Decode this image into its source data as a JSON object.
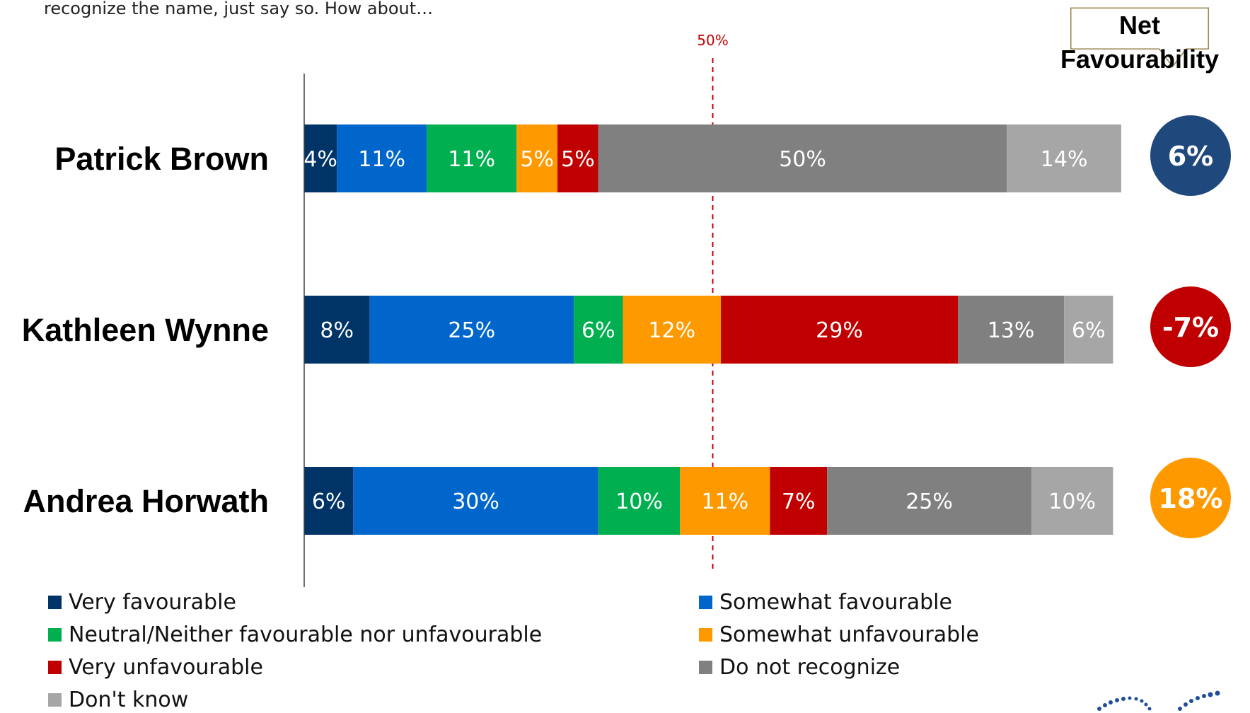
{
  "subtitle": "recognize the name, just say so. How about…",
  "callout": {
    "line1": "Net",
    "line2": "Favourability"
  },
  "reference_line_label": "50%",
  "chart_data": {
    "type": "bar",
    "orientation": "horizontal",
    "stacked": true,
    "categories": [
      "Patrick Brown",
      "Kathleen Wynne",
      "Andrea Horwath"
    ],
    "series": [
      {
        "name": "Very favourable",
        "color": "#003366",
        "values": [
          4,
          8,
          6
        ]
      },
      {
        "name": "Somewhat favourable",
        "color": "#0066CC",
        "values": [
          11,
          25,
          30
        ]
      },
      {
        "name": "Neutral/Neither favourable nor unfavourable",
        "color": "#00B050",
        "values": [
          11,
          6,
          10
        ]
      },
      {
        "name": "Somewhat unfavourable",
        "color": "#FF9900",
        "values": [
          5,
          12,
          11
        ]
      },
      {
        "name": "Very unfavourable",
        "color": "#C00000",
        "values": [
          5,
          29,
          7
        ]
      },
      {
        "name": "Do not recognize",
        "color": "#808080",
        "values": [
          50,
          13,
          25
        ]
      },
      {
        "name": "Don't know",
        "color": "#A6A6A6",
        "values": [
          14,
          6,
          10
        ]
      }
    ],
    "xlim": [
      0,
      100
    ],
    "reference_line": 50,
    "legend_position": "bottom",
    "net_favourability": [
      {
        "value": "6%",
        "color": "#1F497D"
      },
      {
        "value": "-7%",
        "color": "#C00000"
      },
      {
        "value": "18%",
        "color": "#FF9900"
      }
    ]
  },
  "legend": [
    {
      "label": "Very favourable",
      "color": "#003366"
    },
    {
      "label": "Somewhat favourable",
      "color": "#0066CC"
    },
    {
      "label": "Neutral/Neither favourable nor unfavourable",
      "color": "#00B050"
    },
    {
      "label": "Somewhat unfavourable",
      "color": "#FF9900"
    },
    {
      "label": "Very unfavourable",
      "color": "#C00000"
    },
    {
      "label": "Do not recognize",
      "color": "#808080"
    },
    {
      "label": "Don't know",
      "color": "#A6A6A6"
    }
  ]
}
